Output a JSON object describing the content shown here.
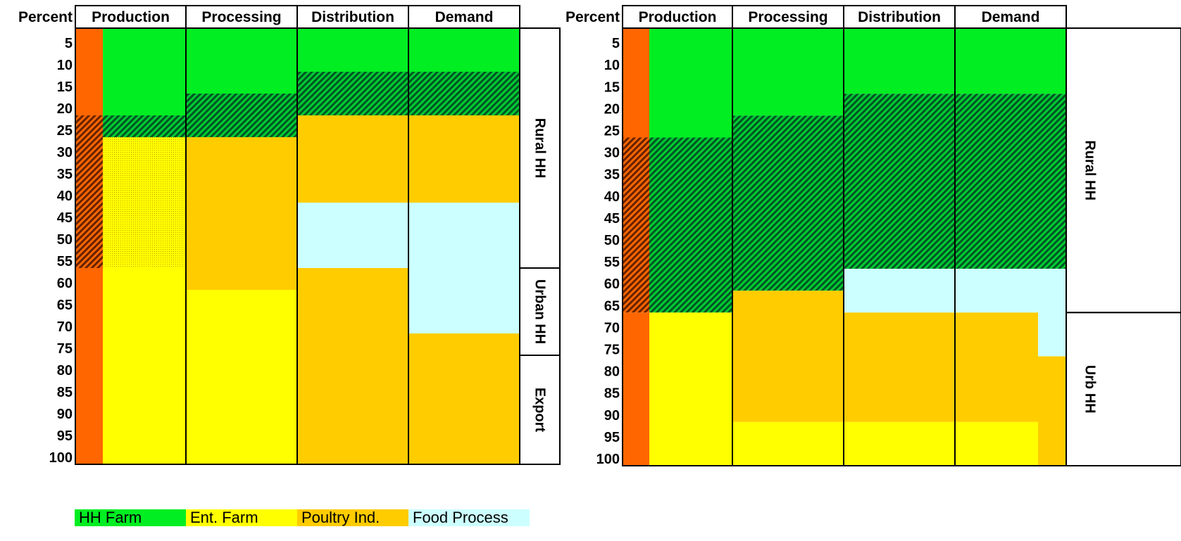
{
  "colors": {
    "HH Farm": "#00ee22",
    "Ent. Farm": "#ffff00",
    "Poultry Ind.": "#ffcc00",
    "Food Process": "#ccffff",
    "Unclassified": "#ff6600",
    "HH Farm hatched": "#006633",
    "Unclassified hatched": "#993300",
    "Ent. Farm dotted": "#ffcc00",
    "Rural HH": "#ffffff",
    "Urban HH": "#ffffff",
    "Export": "#ffffff"
  },
  "legend": [
    {
      "label": "HH Farm",
      "color": "#00ee22"
    },
    {
      "label": "Ent. Farm",
      "color": "#ffff00"
    },
    {
      "label": "Poultry Ind.",
      "color": "#ffcc00"
    },
    {
      "label": "Food Process",
      "color": "#ccffff"
    }
  ],
  "chart_data": [
    {
      "type": "stacked-column",
      "ylabel": "Percent",
      "yticks": [
        5,
        10,
        15,
        20,
        25,
        30,
        35,
        40,
        45,
        50,
        55,
        60,
        65,
        70,
        75,
        80,
        85,
        90,
        95,
        100
      ],
      "ylim": [
        0,
        100
      ],
      "categories": [
        "Production",
        "Processing",
        "Distribution",
        "Demand"
      ],
      "left_strip": [
        {
          "from": 0,
          "to": 20,
          "fill": "Unclassified"
        },
        {
          "from": 20,
          "to": 25,
          "fill": "Unclassified hatched"
        },
        {
          "from": 25,
          "to": 55,
          "fill": "Unclassified hatched"
        },
        {
          "from": 55,
          "to": 100,
          "fill": "Unclassified"
        }
      ],
      "columns": [
        [
          {
            "from": 0,
            "to": 20,
            "fill": "HH Farm"
          },
          {
            "from": 20,
            "to": 25,
            "fill": "HH Farm hatched"
          },
          {
            "from": 25,
            "to": 55,
            "fill": "Ent. Farm dotted"
          },
          {
            "from": 55,
            "to": 100,
            "fill": "Ent. Farm"
          }
        ],
        [
          {
            "from": 0,
            "to": 15,
            "fill": "HH Farm"
          },
          {
            "from": 15,
            "to": 25,
            "fill": "HH Farm hatched"
          },
          {
            "from": 25,
            "to": 60,
            "fill": "Poultry Ind."
          },
          {
            "from": 60,
            "to": 100,
            "fill": "Ent. Farm"
          }
        ],
        [
          {
            "from": 0,
            "to": 10,
            "fill": "HH Farm"
          },
          {
            "from": 10,
            "to": 20,
            "fill": "HH Farm hatched"
          },
          {
            "from": 20,
            "to": 40,
            "fill": "Poultry Ind."
          },
          {
            "from": 40,
            "to": 55,
            "fill": "Food Process"
          },
          {
            "from": 55,
            "to": 100,
            "fill": "Poultry Ind."
          }
        ],
        [
          {
            "from": 0,
            "to": 10,
            "fill": "HH Farm"
          },
          {
            "from": 10,
            "to": 20,
            "fill": "HH Farm hatched"
          },
          {
            "from": 20,
            "to": 40,
            "fill": "Poultry Ind."
          },
          {
            "from": 40,
            "to": 70,
            "fill": "Food Process"
          },
          {
            "from": 70,
            "to": 100,
            "fill": "Poultry Ind."
          }
        ]
      ],
      "right_groups": [
        {
          "label": "Rural HH",
          "from": 0,
          "to": 55
        },
        {
          "label": "Urban HH",
          "from": 55,
          "to": 75
        },
        {
          "label": "Export",
          "from": 75,
          "to": 100
        }
      ]
    },
    {
      "type": "stacked-column",
      "ylabel": "Percent",
      "yticks": [
        5,
        10,
        15,
        20,
        25,
        30,
        35,
        40,
        45,
        50,
        55,
        60,
        65,
        70,
        75,
        80,
        85,
        90,
        95,
        100
      ],
      "ylim": [
        0,
        100
      ],
      "categories": [
        "Production",
        "Processing",
        "Distribution",
        "Demand"
      ],
      "left_strip": [
        {
          "from": 0,
          "to": 25,
          "fill": "Unclassified"
        },
        {
          "from": 25,
          "to": 65,
          "fill": "Unclassified hatched"
        },
        {
          "from": 65,
          "to": 100,
          "fill": "Unclassified"
        }
      ],
      "columns": [
        [
          {
            "from": 0,
            "to": 25,
            "fill": "HH Farm"
          },
          {
            "from": 25,
            "to": 65,
            "fill": "HH Farm hatched"
          },
          {
            "from": 65,
            "to": 100,
            "fill": "Ent. Farm"
          }
        ],
        [
          {
            "from": 0,
            "to": 20,
            "fill": "HH Farm"
          },
          {
            "from": 20,
            "to": 60,
            "fill": "HH Farm hatched"
          },
          {
            "from": 60,
            "to": 90,
            "fill": "Poultry Ind."
          },
          {
            "from": 90,
            "to": 100,
            "fill": "Ent. Farm"
          }
        ],
        [
          {
            "from": 0,
            "to": 15,
            "fill": "HH Farm"
          },
          {
            "from": 15,
            "to": 55,
            "fill": "HH Farm hatched"
          },
          {
            "from": 55,
            "to": 65,
            "fill": "Food Process"
          },
          {
            "from": 65,
            "to": 90,
            "fill": "Poultry Ind."
          },
          {
            "from": 90,
            "to": 100,
            "fill": "Ent. Farm"
          }
        ],
        [
          {
            "from": 0,
            "to": 15,
            "fill": "HH Farm"
          },
          {
            "from": 15,
            "to": 55,
            "fill": "HH Farm hatched"
          },
          {
            "from": 55,
            "to": 65,
            "fill": "Food Process",
            "sub": "main"
          },
          {
            "from": 65,
            "to": 90,
            "fill": "Poultry Ind.",
            "sub": "main"
          },
          {
            "from": 90,
            "to": 100,
            "fill": "Ent. Farm",
            "sub": "main"
          },
          {
            "from": 55,
            "to": 75,
            "fill": "Food Process",
            "sub": "edge"
          },
          {
            "from": 75,
            "to": 100,
            "fill": "Poultry Ind.",
            "sub": "edge"
          }
        ]
      ],
      "right_groups": [
        {
          "label": "Rural HH",
          "from": 0,
          "to": 65
        },
        {
          "label": "Urb HH",
          "from": 65,
          "to": 100
        }
      ]
    }
  ]
}
